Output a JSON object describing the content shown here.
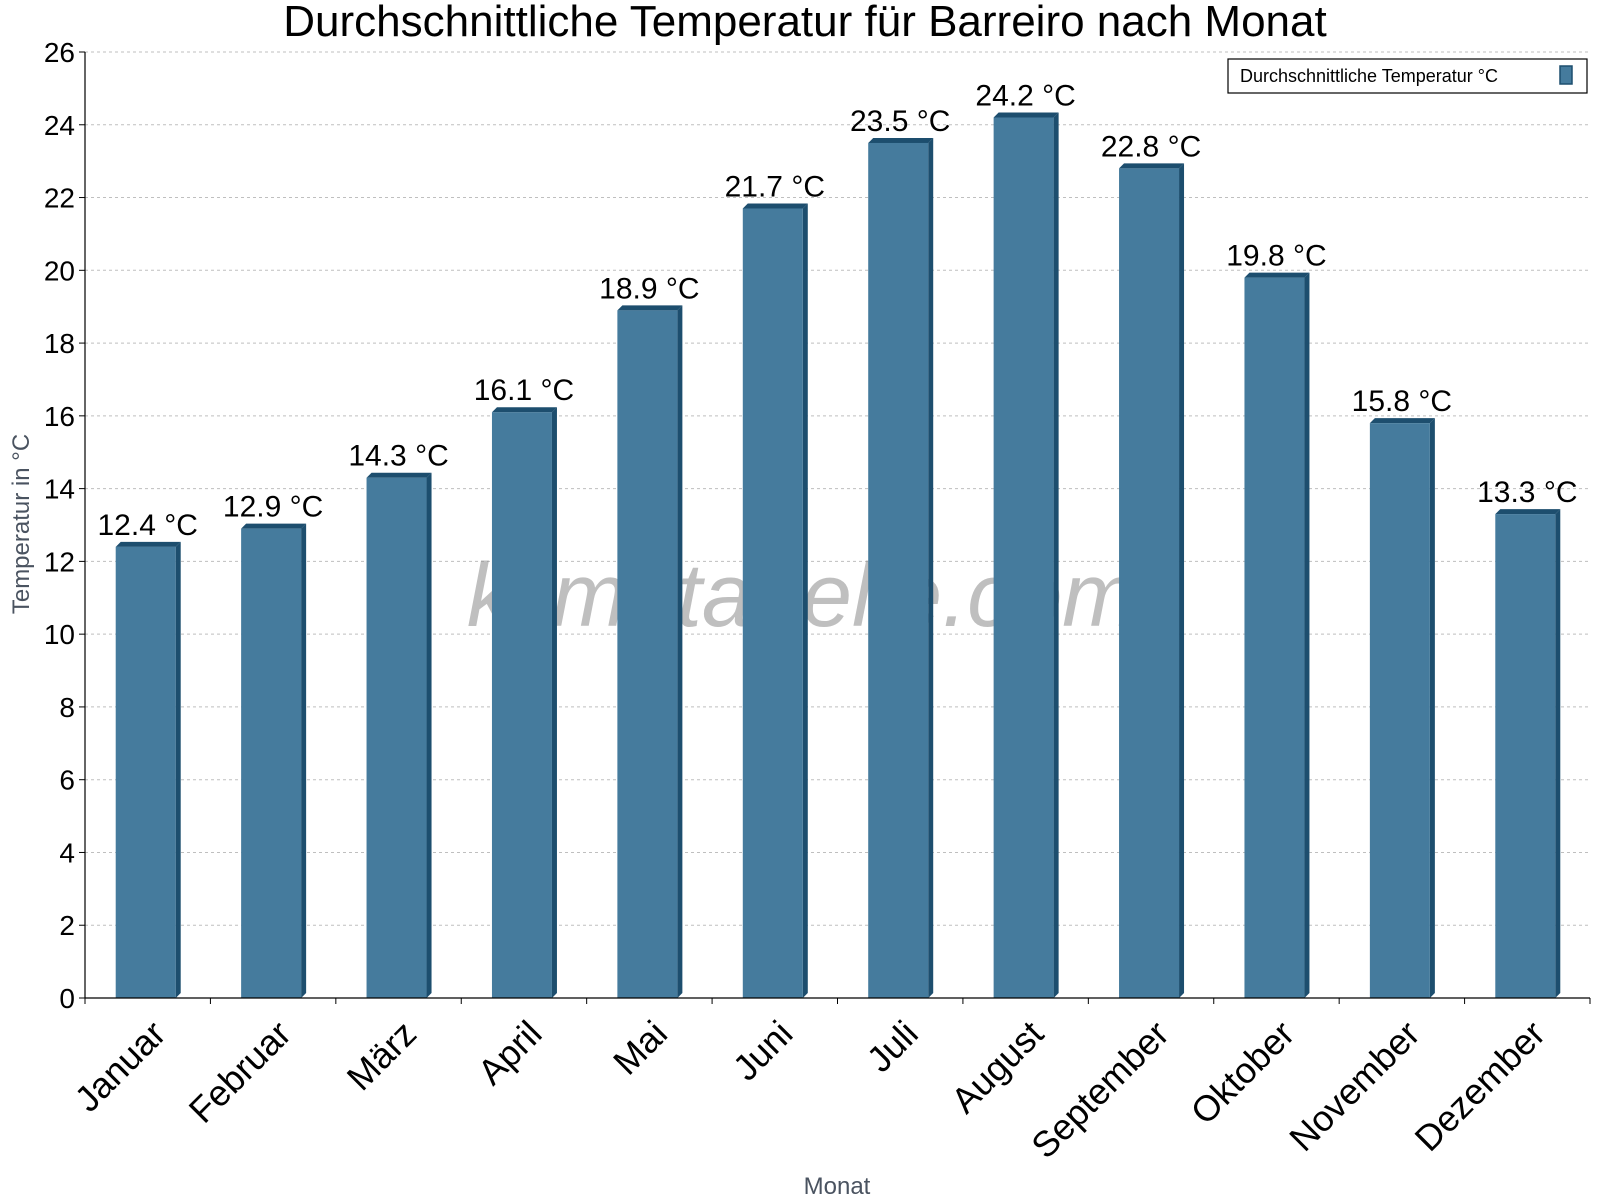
{
  "watermark": "klimatabelle.com",
  "colors": {
    "bar": "#457b9d",
    "bar_edge": "#1d4e6e",
    "grid": "#bfbfbf",
    "axis": "#000000"
  },
  "chart_data": {
    "type": "bar",
    "title": "Durchschnittliche Temperatur für Barreiro nach Monat",
    "xlabel": "Monat",
    "ylabel": "Temperatur in °C",
    "ylim": [
      0,
      26
    ],
    "yticks": [
      "0",
      "2",
      "4",
      "6",
      "8",
      "10",
      "12",
      "14",
      "16",
      "18",
      "20",
      "22",
      "24",
      "26"
    ],
    "grid": true,
    "legend_position": "top-right",
    "categories": [
      "Januar",
      "Februar",
      "März",
      "April",
      "Mai",
      "Juni",
      "Juli",
      "August",
      "September",
      "Oktober",
      "November",
      "Dezember"
    ],
    "series": [
      {
        "name": "Durchschnittliche Temperatur °C",
        "values": [
          12.4,
          12.9,
          14.3,
          16.1,
          18.9,
          21.7,
          23.5,
          24.2,
          22.8,
          19.8,
          15.8,
          13.3
        ],
        "labels": [
          "12.4 °C",
          "12.9 °C",
          "14.3 °C",
          "16.1 °C",
          "18.9 °C",
          "21.7 °C",
          "23.5 °C",
          "24.2 °C",
          "22.8 °C",
          "19.8 °C",
          "15.8 °C",
          "13.3 °C"
        ]
      }
    ]
  }
}
